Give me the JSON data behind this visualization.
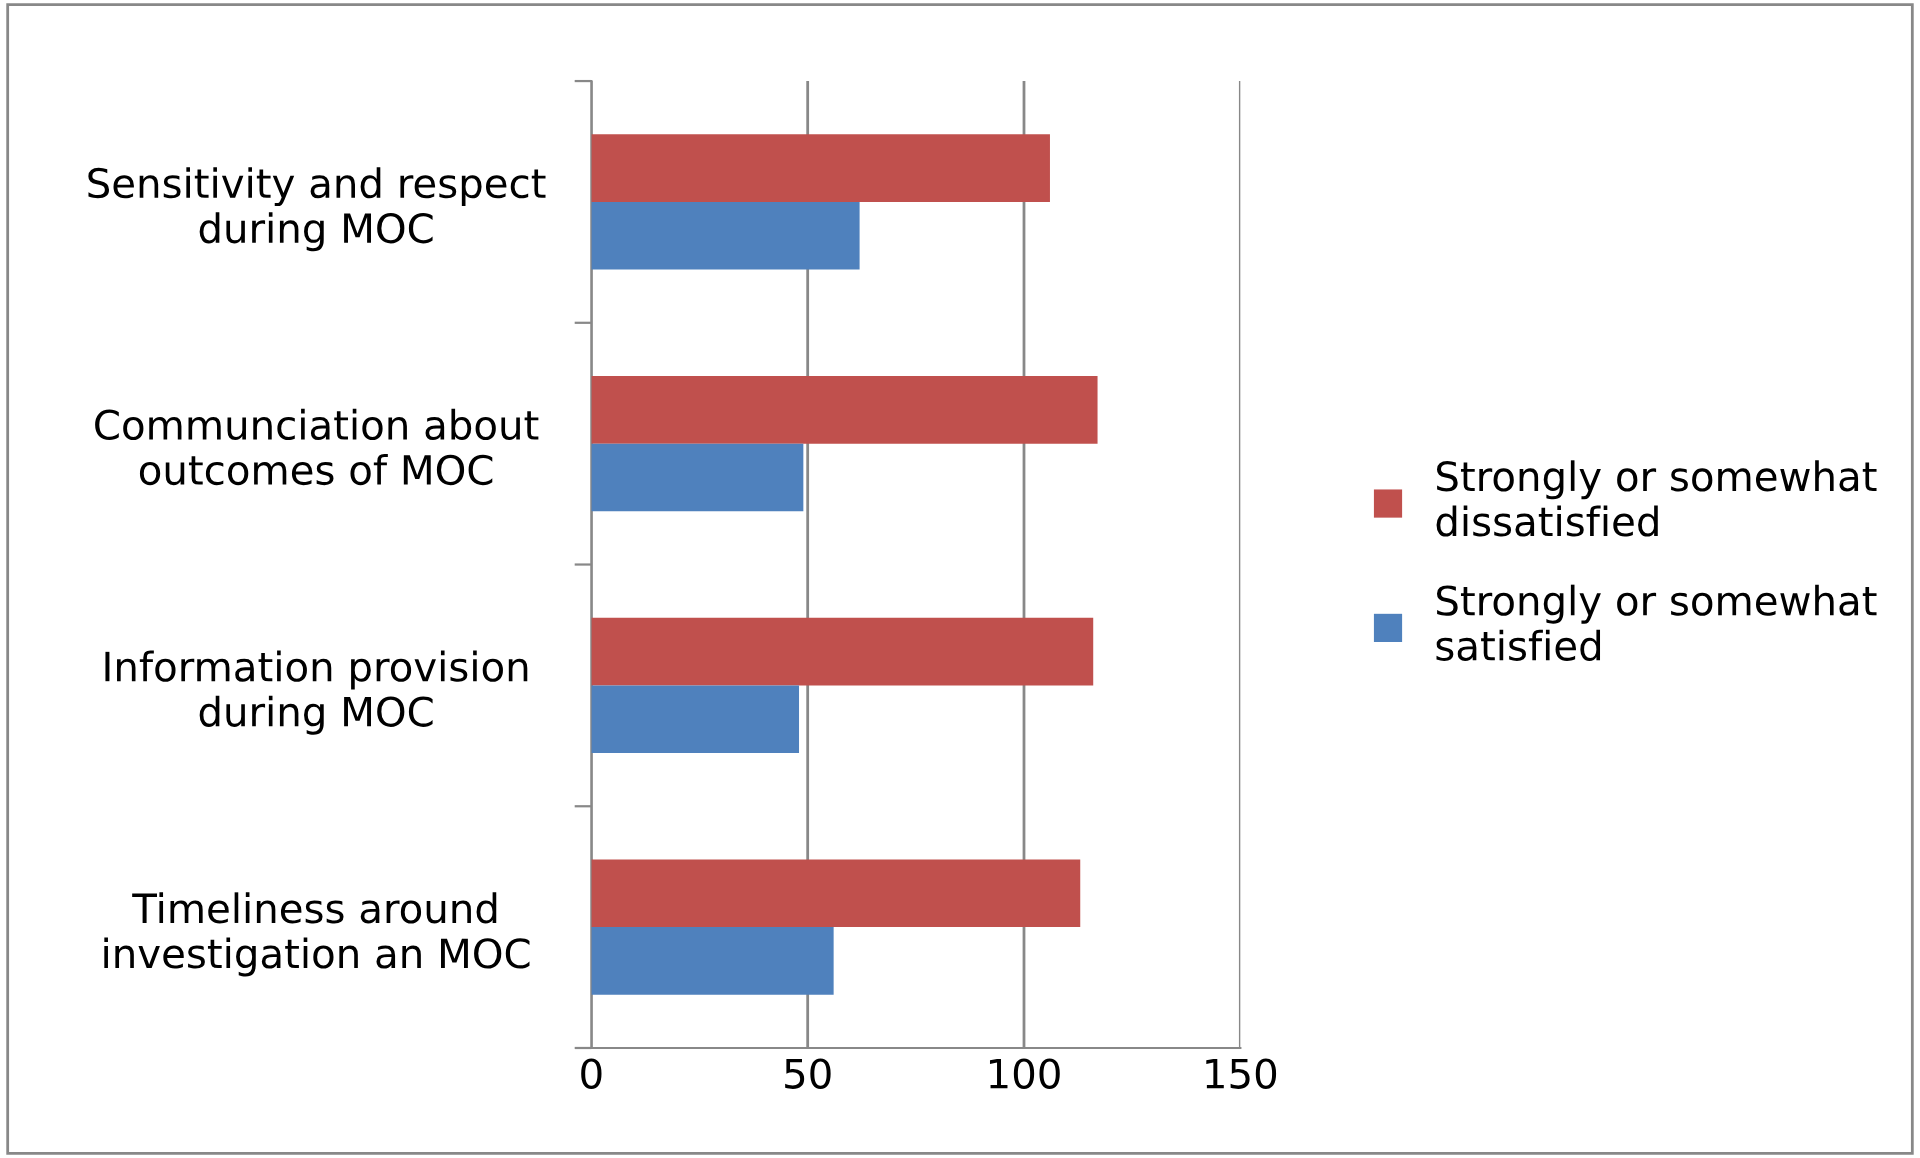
{
  "chart_data": {
    "type": "bar",
    "orientation": "horizontal",
    "categories": [
      "Sensitivity and respect\nduring MOC",
      "Communciation about\noutcomes of MOC",
      "Information provision\nduring MOC",
      "Timeliness around\ninvestigation an MOC"
    ],
    "series": [
      {
        "name": "Strongly or somewhat\ndissatisfied",
        "color": "#c0504d",
        "values": [
          106,
          117,
          116,
          113
        ]
      },
      {
        "name": "Strongly or somewhat\nsatisfied",
        "color": "#4f81bd",
        "values": [
          62,
          49,
          48,
          56
        ]
      }
    ],
    "xlim": [
      0,
      150
    ],
    "xticks": [
      0,
      50,
      100,
      150
    ],
    "grid": "x",
    "legend": "right"
  }
}
